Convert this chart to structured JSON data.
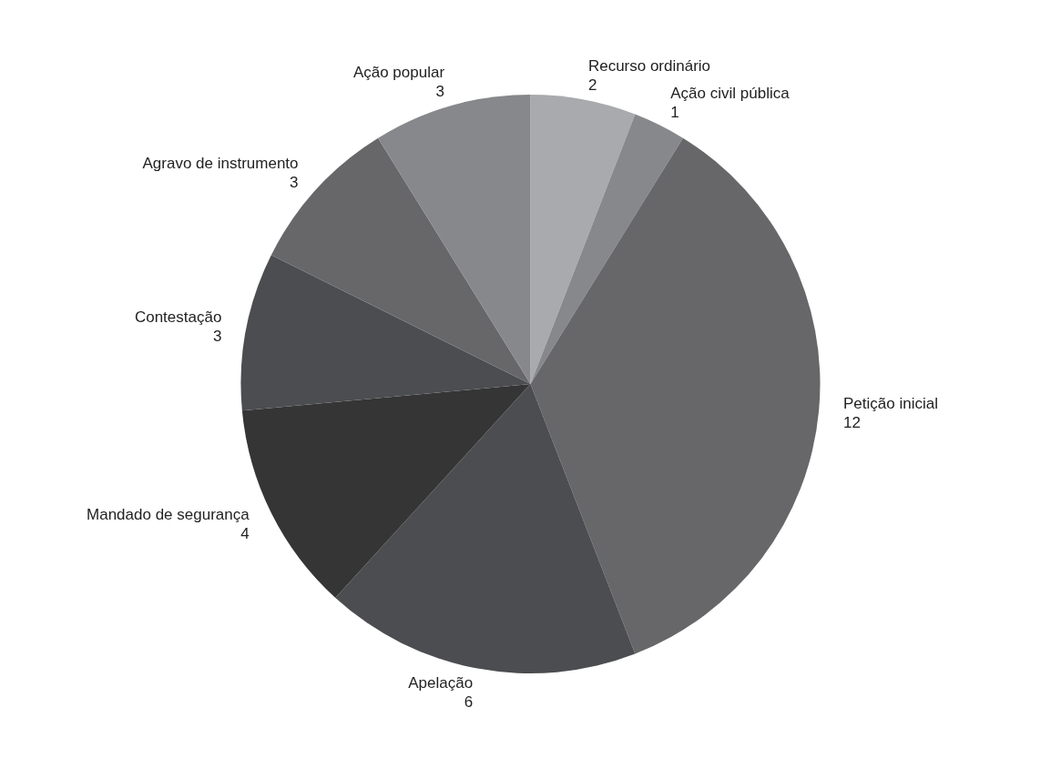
{
  "chart_data": {
    "type": "pie",
    "categories": [
      "Recurso ordinário",
      "Ação civil pública",
      "Petição inicial",
      "Apelação",
      "Mandado de segurança",
      "Contestação",
      "Agravo de instrumento",
      "Ação popular"
    ],
    "values": [
      2,
      1,
      12,
      6,
      4,
      3,
      3,
      3
    ],
    "colors": [
      "#a9aaad",
      "#87888c",
      "#67676a",
      "#4c4d50",
      "#353535",
      "#4c4d50",
      "#67676a",
      "#87888c"
    ],
    "data_labels": true
  }
}
